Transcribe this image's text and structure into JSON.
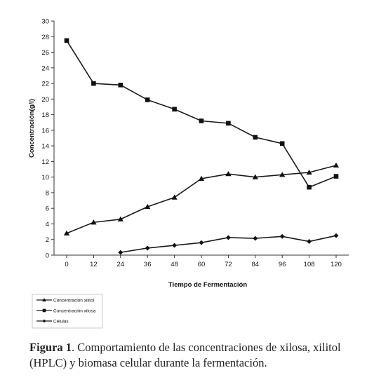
{
  "chart_data": {
    "type": "line",
    "xlabel": "Tiempo de Fermentación",
    "ylabel": "Concentración(g/l)",
    "x": [
      0,
      12,
      24,
      36,
      48,
      60,
      72,
      84,
      96,
      108,
      120
    ],
    "xlim": [
      0,
      120
    ],
    "ylim": [
      0,
      30
    ],
    "y_ticks": [
      0,
      2,
      4,
      6,
      8,
      10,
      12,
      14,
      16,
      18,
      20,
      22,
      24,
      26,
      28,
      30
    ],
    "grid": false,
    "legend_position": "bottom-left",
    "series": [
      {
        "name": "Concentración xilitol",
        "marker": "triangle",
        "color": "#1a1a1a",
        "values": [
          2.8,
          4.2,
          4.6,
          6.2,
          7.4,
          9.8,
          10.4,
          10.0,
          10.3,
          10.6,
          11.5
        ]
      },
      {
        "name": "Concentración xilosa",
        "marker": "square",
        "color": "#1a1a1a",
        "values": [
          27.5,
          22.0,
          21.8,
          19.9,
          18.7,
          17.2,
          16.9,
          15.1,
          14.3,
          8.7,
          10.1
        ]
      },
      {
        "name": "Células",
        "marker": "diamond",
        "color": "#1a1a1a",
        "values": [
          null,
          null,
          0.35,
          0.9,
          1.25,
          1.6,
          2.25,
          2.15,
          2.4,
          1.75,
          2.5
        ]
      }
    ]
  },
  "caption": {
    "lead": "Figura 1",
    "text": ". Comportamiento de las concentraciones de xilosa, xilitol (HPLC) y biomasa celular durante la fermentación."
  }
}
